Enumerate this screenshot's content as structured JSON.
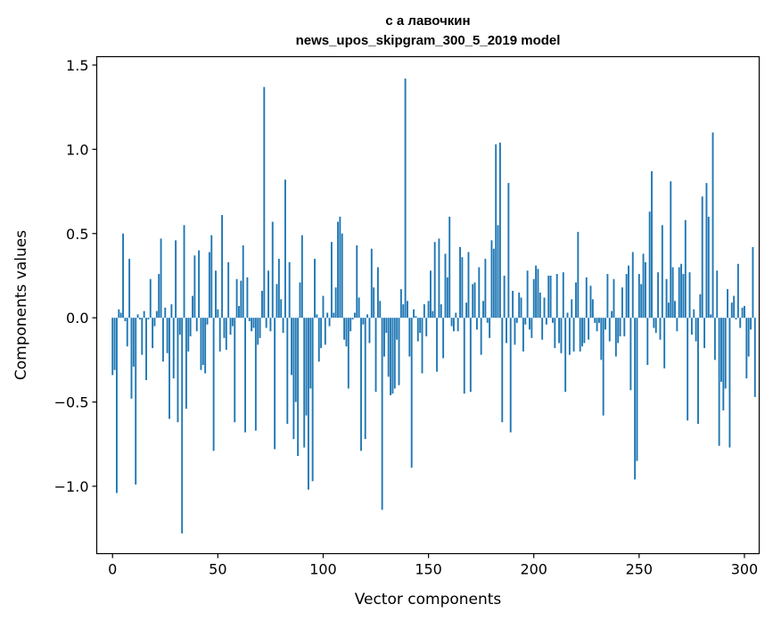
{
  "chart_data": {
    "type": "bar",
    "title": "с а лавочкин",
    "subtitle": "news_upos_skipgram_300_5_2019 model",
    "xlabel": "Vector components",
    "ylabel": "Components values",
    "xlim": [
      -7.5,
      307
    ],
    "ylim": [
      -1.4,
      1.55
    ],
    "xticks": [
      0,
      50,
      100,
      150,
      200,
      250,
      300
    ],
    "xtick_labels": [
      "0",
      "50",
      "100",
      "150",
      "200",
      "250",
      "300"
    ],
    "yticks": [
      -1.0,
      -0.5,
      0.0,
      0.5,
      1.0,
      1.5
    ],
    "ytick_labels": [
      "−1.0",
      "−0.5",
      "0.0",
      "0.5",
      "1.0",
      "1.5"
    ],
    "bar_color": "#1f77b4",
    "values": [
      -0.34,
      -0.31,
      -1.04,
      0.05,
      0.03,
      0.5,
      -0.02,
      -0.17,
      0.35,
      -0.48,
      -0.29,
      -0.99,
      0.02,
      -0.01,
      -0.22,
      0.04,
      -0.37,
      -0.01,
      0.23,
      -0.18,
      -0.05,
      0.04,
      0.26,
      0.47,
      -0.26,
      0.06,
      -0.21,
      -0.6,
      0.08,
      -0.36,
      0.46,
      -0.62,
      -0.1,
      -1.28,
      0.55,
      -0.54,
      -0.2,
      -0.11,
      0.13,
      0.37,
      -0.08,
      0.4,
      -0.31,
      -0.28,
      -0.33,
      -0.04,
      0.39,
      0.49,
      -0.79,
      0.28,
      0.05,
      -0.2,
      0.61,
      -0.12,
      -0.19,
      0.33,
      -0.1,
      -0.05,
      -0.62,
      0.23,
      0.07,
      0.22,
      0.43,
      -0.68,
      0.24,
      -0.02,
      -0.08,
      -0.06,
      -0.67,
      -0.16,
      -0.12,
      0.16,
      1.37,
      -0.06,
      0.28,
      -0.08,
      0.57,
      -0.78,
      0.2,
      0.35,
      0.11,
      -0.09,
      0.82,
      -0.63,
      0.33,
      -0.34,
      -0.72,
      -0.5,
      -0.82,
      0.21,
      0.49,
      -0.77,
      -0.58,
      -1.02,
      -0.42,
      -0.97,
      0.35,
      0.02,
      -0.26,
      -0.18,
      0.13,
      -0.16,
      0.03,
      -0.05,
      0.45,
      0.03,
      0.18,
      0.57,
      0.6,
      0.5,
      -0.13,
      -0.17,
      -0.42,
      -0.08,
      -0.01,
      0.03,
      0.43,
      0.12,
      -0.79,
      -0.04,
      -0.72,
      0.02,
      -0.15,
      0.41,
      0.18,
      -0.44,
      0.3,
      0.1,
      -1.14,
      -0.23,
      -0.09,
      -0.35,
      -0.46,
      -0.45,
      -0.42,
      -0.13,
      -0.4,
      0.17,
      0.08,
      1.42,
      0.1,
      -0.23,
      -0.89,
      0.05,
      0.01,
      -0.14,
      -0.09,
      -0.33,
      0.08,
      -0.11,
      0.1,
      0.28,
      0.04,
      0.45,
      -0.32,
      0.47,
      0.08,
      -0.24,
      0.38,
      0.24,
      0.6,
      -0.05,
      -0.08,
      0.03,
      -0.08,
      0.42,
      0.36,
      -0.45,
      0.09,
      0.39,
      -0.44,
      0.2,
      0.21,
      -0.07,
      0.3,
      -0.22,
      0.1,
      0.35,
      -0.03,
      -0.12,
      0.46,
      0.41,
      1.03,
      0.55,
      1.04,
      -0.62,
      0.25,
      -0.15,
      0.8,
      -0.68,
      0.16,
      -0.16,
      -0.03,
      0.15,
      0.12,
      -0.2,
      -0.04,
      0.28,
      -0.07,
      -0.12,
      0.23,
      0.31,
      0.29,
      0.15,
      -0.13,
      0.12,
      -0.04,
      0.25,
      0.25,
      -0.03,
      -0.18,
      0.26,
      -0.15,
      -0.21,
      0.27,
      -0.44,
      0.03,
      -0.22,
      0.11,
      -0.2,
      0.21,
      0.51,
      -0.2,
      -0.17,
      -0.15,
      0.24,
      -0.13,
      0.19,
      0.11,
      -0.03,
      -0.08,
      -0.03,
      -0.25,
      -0.58,
      -0.07,
      0.26,
      -0.14,
      0.04,
      0.23,
      -0.23,
      -0.15,
      -0.11,
      0.18,
      -0.11,
      0.26,
      0.31,
      -0.43,
      0.39,
      -0.96,
      -0.85,
      0.26,
      0.2,
      0.38,
      0.33,
      -0.28,
      0.63,
      0.87,
      -0.06,
      -0.09,
      0.27,
      -0.13,
      0.55,
      -0.3,
      0.23,
      0.09,
      0.81,
      0.3,
      0.1,
      -0.08,
      0.3,
      0.32,
      0.26,
      0.58,
      -0.61,
      0.27,
      -0.1,
      0.05,
      -0.14,
      -0.63,
      0.14,
      0.72,
      -0.18,
      0.8,
      0.6,
      0.02,
      1.1,
      -0.25,
      0.28,
      -0.76,
      -0.38,
      -0.55,
      -0.42,
      0.17,
      -0.77,
      0.09,
      0.13,
      -0.01,
      0.32,
      -0.06,
      0.06,
      0.07,
      -0.36,
      -0.23,
      -0.07,
      0.42,
      -0.47
    ]
  }
}
